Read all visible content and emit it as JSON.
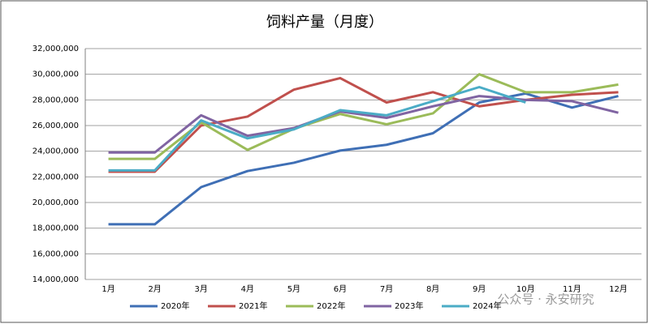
{
  "chart_data": {
    "type": "line",
    "title": "饲料产量（月度）",
    "categories": [
      "1月",
      "2月",
      "3月",
      "4月",
      "5月",
      "6月",
      "7月",
      "8月",
      "9月",
      "10月",
      "11月",
      "12月"
    ],
    "series": [
      {
        "name": "2020年",
        "color": "#3f6fb5",
        "values": [
          18300000,
          18300000,
          21200000,
          22450000,
          23100000,
          24050000,
          24500000,
          25400000,
          27800000,
          28500000,
          27400000,
          28300000
        ]
      },
      {
        "name": "2021年",
        "color": "#c0504d",
        "values": [
          22400000,
          22400000,
          26000000,
          26700000,
          28800000,
          29700000,
          27800000,
          28600000,
          27500000,
          28000000,
          28400000,
          28600000
        ]
      },
      {
        "name": "2022年",
        "color": "#9bbb59",
        "values": [
          23400000,
          23400000,
          26250000,
          24100000,
          25750000,
          26900000,
          26100000,
          26950000,
          30000000,
          28600000,
          28600000,
          29200000
        ]
      },
      {
        "name": "2023年",
        "color": "#8064a2",
        "values": [
          23900000,
          23900000,
          26800000,
          25200000,
          25800000,
          27100000,
          26600000,
          27500000,
          28300000,
          28000000,
          27900000,
          27000000
        ]
      },
      {
        "name": "2024年",
        "color": "#4bacc6",
        "values": [
          22500000,
          22500000,
          26400000,
          25000000,
          25700000,
          27200000,
          26800000,
          27900000,
          29000000,
          27800000,
          null,
          null
        ]
      }
    ],
    "ylim": [
      14000000,
      32000000
    ],
    "yticks": [
      {
        "value": 14000000,
        "label": "14,000,000"
      },
      {
        "value": 16000000,
        "label": "16,000,000"
      },
      {
        "value": 18000000,
        "label": "18,000,000"
      },
      {
        "value": 20000000,
        "label": "20,000,000"
      },
      {
        "value": 22000000,
        "label": "22,000,000"
      },
      {
        "value": 24000000,
        "label": "24,000,000"
      },
      {
        "value": 26000000,
        "label": "26,000,000"
      },
      {
        "value": 28000000,
        "label": "28,000,000"
      },
      {
        "value": 30000000,
        "label": "30,000,000"
      },
      {
        "value": 32000000,
        "label": "32,000,000"
      }
    ],
    "grid": true,
    "legend": "bottom",
    "watermark": "公众号 · 永安研究"
  }
}
